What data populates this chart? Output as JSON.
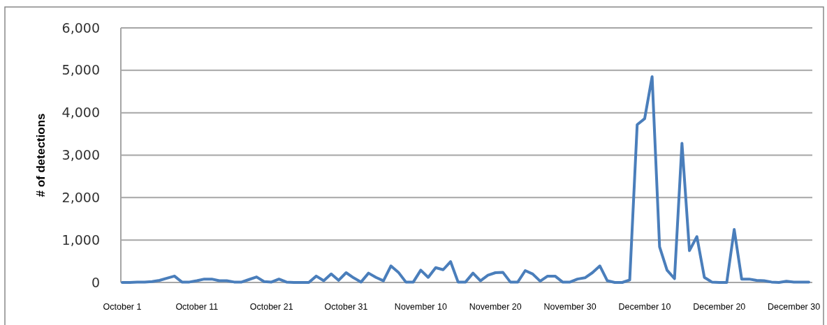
{
  "chart_data": {
    "type": "line",
    "ylabel": "# of detections",
    "categories": [
      "October 1",
      null,
      null,
      null,
      null,
      null,
      null,
      null,
      null,
      null,
      "October 11",
      null,
      null,
      null,
      null,
      null,
      null,
      null,
      null,
      null,
      "October 21",
      null,
      null,
      null,
      null,
      null,
      null,
      null,
      null,
      null,
      "October 31",
      null,
      null,
      null,
      null,
      null,
      null,
      null,
      null,
      null,
      "November 10",
      null,
      null,
      null,
      null,
      null,
      null,
      null,
      null,
      null,
      "November 20",
      null,
      null,
      null,
      null,
      null,
      null,
      null,
      null,
      null,
      "November 30",
      null,
      null,
      null,
      null,
      null,
      null,
      null,
      null,
      null,
      "December 10",
      null,
      null,
      null,
      null,
      null,
      null,
      null,
      null,
      null,
      "December 20",
      null,
      null,
      null,
      null,
      null,
      null,
      null,
      null,
      null,
      "December 30",
      null,
      null
    ],
    "series": [
      {
        "color": "#4a7ebb",
        "values": [
          0,
          0,
          10,
          10,
          20,
          50,
          100,
          150,
          10,
          10,
          40,
          80,
          80,
          40,
          40,
          10,
          10,
          70,
          130,
          20,
          10,
          80,
          10,
          0,
          0,
          0,
          150,
          40,
          200,
          50,
          230,
          110,
          10,
          220,
          120,
          40,
          390,
          240,
          10,
          10,
          290,
          120,
          350,
          300,
          490,
          10,
          10,
          220,
          40,
          170,
          230,
          240,
          10,
          10,
          280,
          200,
          30,
          150,
          150,
          10,
          10,
          80,
          110,
          230,
          390,
          40,
          0,
          0,
          60,
          3720,
          3860,
          4850,
          840,
          290,
          90,
          3280,
          750,
          1080,
          120,
          10,
          0,
          0,
          1250,
          80,
          80,
          50,
          40,
          10,
          0,
          30,
          10,
          10,
          10
        ]
      }
    ],
    "ylim": [
      0,
      6000
    ],
    "yticks": [
      {
        "value": 0,
        "label": "0"
      },
      {
        "value": 1000,
        "label": "1,000"
      },
      {
        "value": 2000,
        "label": "2,000"
      },
      {
        "value": 3000,
        "label": "3,000"
      },
      {
        "value": 4000,
        "label": "4,000"
      },
      {
        "value": 5000,
        "label": "5,000"
      },
      {
        "value": 6000,
        "label": "6,000"
      }
    ],
    "grid": "y",
    "marker": "none",
    "line_style": "solid"
  }
}
